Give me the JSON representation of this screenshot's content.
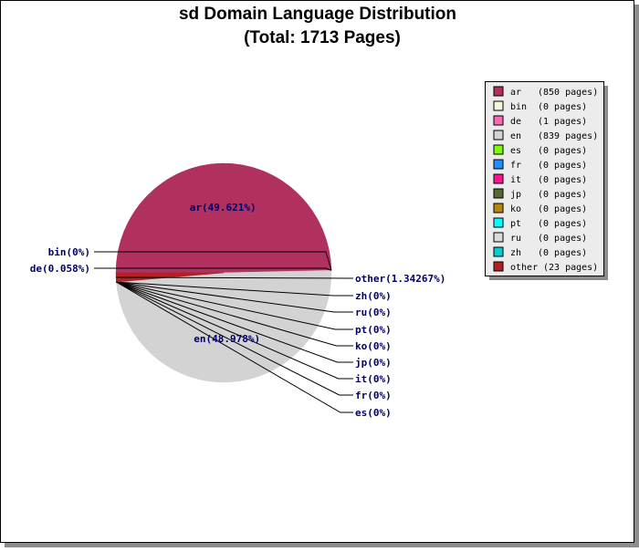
{
  "chart_data": {
    "type": "pie",
    "title": "sd Domain Language Distribution",
    "subtitle": "(Total: 1713 Pages)",
    "total_pages": 1713,
    "slices": [
      {
        "lang": "ar",
        "pages": 850,
        "percent": 49.621,
        "label": "ar(49.621%)",
        "legend": "(850 pages)",
        "color": "#b03060"
      },
      {
        "lang": "bin",
        "pages": 0,
        "percent": 0,
        "label": "bin(0%)",
        "legend": "(0 pages)",
        "color": "#f5f5dc"
      },
      {
        "lang": "de",
        "pages": 1,
        "percent": 0.058,
        "label": "de(0.058%)",
        "legend": "(1 pages)",
        "color": "#ff69b4"
      },
      {
        "lang": "en",
        "pages": 839,
        "percent": 48.978,
        "label": "en(48.978%)",
        "legend": "(839 pages)",
        "color": "#d3d3d3"
      },
      {
        "lang": "es",
        "pages": 0,
        "percent": 0,
        "label": "es(0%)",
        "legend": "(0 pages)",
        "color": "#7cfc00"
      },
      {
        "lang": "fr",
        "pages": 0,
        "percent": 0,
        "label": "fr(0%)",
        "legend": "(0 pages)",
        "color": "#1e90ff"
      },
      {
        "lang": "it",
        "pages": 0,
        "percent": 0,
        "label": "it(0%)",
        "legend": "(0 pages)",
        "color": "#ff1493"
      },
      {
        "lang": "jp",
        "pages": 0,
        "percent": 0,
        "label": "jp(0%)",
        "legend": "(0 pages)",
        "color": "#556b2f"
      },
      {
        "lang": "ko",
        "pages": 0,
        "percent": 0,
        "label": "ko(0%)",
        "legend": "(0 pages)",
        "color": "#b8860b"
      },
      {
        "lang": "pt",
        "pages": 0,
        "percent": 0,
        "label": "pt(0%)",
        "legend": "(0 pages)",
        "color": "#00ffff"
      },
      {
        "lang": "ru",
        "pages": 0,
        "percent": 0,
        "label": "ru(0%)",
        "legend": "(0 pages)",
        "color": "#dcdcdc"
      },
      {
        "lang": "zh",
        "pages": 0,
        "percent": 0,
        "label": "zh(0%)",
        "legend": "(0 pages)",
        "color": "#00ced1"
      },
      {
        "lang": "other",
        "pages": 23,
        "percent": 1.34267,
        "label": "other(1.34267%)",
        "legend": "(23 pages)",
        "color": "#b22222"
      }
    ],
    "legend_position": "top-right"
  }
}
